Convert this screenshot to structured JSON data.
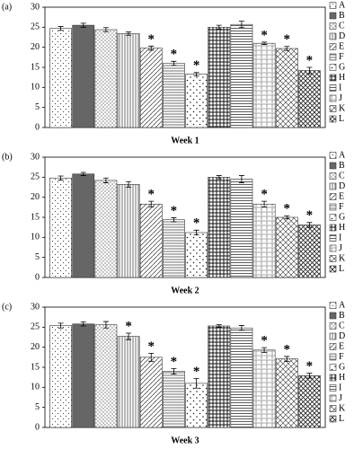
{
  "chart_data": [
    {
      "type": "bar",
      "panel_label": "(a)",
      "xlabel": "Week 1",
      "categories": [
        "A",
        "B",
        "C",
        "D",
        "E",
        "F",
        "G",
        "H",
        "I",
        "J",
        "K",
        "L"
      ],
      "values": [
        24.7,
        25.5,
        24.4,
        23.4,
        19.8,
        16.0,
        13.3,
        25.0,
        25.7,
        21.0,
        19.7,
        14.2
      ],
      "errors": [
        0.5,
        0.5,
        0.5,
        0.4,
        0.5,
        0.5,
        0.4,
        0.5,
        0.8,
        0.3,
        0.5,
        0.8
      ],
      "significance": [
        null,
        null,
        null,
        null,
        "*",
        "*",
        "*",
        null,
        null,
        "*",
        "*",
        "*"
      ],
      "ylim": [
        0,
        30
      ],
      "yticks": [
        0,
        5,
        10,
        15,
        20,
        25,
        30
      ]
    },
    {
      "type": "bar",
      "panel_label": "(b)",
      "xlabel": "Week 2",
      "categories": [
        "A",
        "B",
        "C",
        "D",
        "E",
        "F",
        "G",
        "H",
        "I",
        "J",
        "K",
        "L"
      ],
      "values": [
        24.8,
        25.8,
        24.2,
        23.2,
        18.3,
        14.4,
        11.2,
        25.0,
        24.5,
        18.3,
        15.0,
        13.1
      ],
      "errors": [
        0.5,
        0.4,
        0.6,
        0.7,
        0.7,
        0.5,
        0.6,
        0.4,
        0.9,
        0.7,
        0.4,
        0.6
      ],
      "significance": [
        null,
        null,
        null,
        null,
        "*",
        "*",
        "*",
        null,
        null,
        "*",
        "*",
        "*"
      ],
      "ylim": [
        0,
        30
      ],
      "yticks": [
        0,
        5,
        10,
        15,
        20,
        25,
        30
      ]
    },
    {
      "type": "bar",
      "panel_label": "(c)",
      "xlabel": "Week 3",
      "categories": [
        "A",
        "B",
        "C",
        "D",
        "E",
        "F",
        "G",
        "H",
        "I",
        "J",
        "K",
        "L"
      ],
      "values": [
        25.4,
        25.8,
        25.6,
        22.7,
        17.5,
        14.0,
        11.0,
        25.3,
        24.8,
        19.3,
        17.1,
        12.9
      ],
      "errors": [
        0.6,
        0.5,
        0.8,
        0.8,
        1.0,
        0.7,
        1.2,
        0.3,
        0.6,
        0.6,
        0.6,
        0.6
      ],
      "significance": [
        null,
        null,
        null,
        "*",
        "*",
        "*",
        "*",
        null,
        null,
        "*",
        "*",
        "*"
      ],
      "ylim": [
        0,
        30
      ],
      "yticks": [
        0,
        5,
        10,
        15,
        20,
        25,
        30
      ]
    }
  ]
}
